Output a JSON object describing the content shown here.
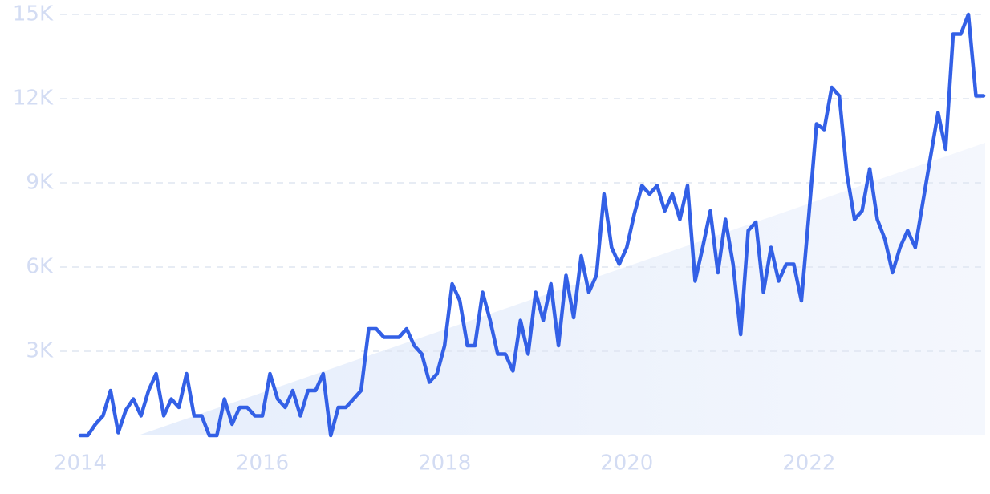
{
  "chart_data": {
    "type": "line",
    "x": [
      2014,
      2014.083,
      2014.167,
      2014.25,
      2014.333,
      2014.417,
      2014.5,
      2014.583,
      2014.667,
      2014.75,
      2014.833,
      2014.917,
      2015,
      2015.083,
      2015.167,
      2015.25,
      2015.333,
      2015.417,
      2015.5,
      2015.583,
      2015.667,
      2015.75,
      2015.833,
      2015.917,
      2016,
      2016.083,
      2016.167,
      2016.25,
      2016.333,
      2016.417,
      2016.5,
      2016.583,
      2016.667,
      2016.75,
      2016.833,
      2016.917,
      2017,
      2017.083,
      2017.167,
      2017.25,
      2017.333,
      2017.417,
      2017.5,
      2017.583,
      2017.667,
      2017.75,
      2017.833,
      2017.917,
      2018,
      2018.083,
      2018.167,
      2018.25,
      2018.333,
      2018.417,
      2018.5,
      2018.583,
      2018.667,
      2018.75,
      2018.833,
      2018.917,
      2019,
      2019.083,
      2019.167,
      2019.25,
      2019.333,
      2019.417,
      2019.5,
      2019.583,
      2019.667,
      2019.75,
      2019.833,
      2019.917,
      2020,
      2020.083,
      2020.167,
      2020.25,
      2020.333,
      2020.417,
      2020.5,
      2020.583,
      2020.667,
      2020.75,
      2020.833,
      2020.917,
      2021,
      2021.083,
      2021.167,
      2021.25,
      2021.333,
      2021.417,
      2021.5,
      2021.583,
      2021.667,
      2021.75,
      2021.833,
      2021.917,
      2022,
      2022.083,
      2022.167,
      2022.25,
      2022.333,
      2022.417,
      2022.5,
      2022.583,
      2022.667,
      2022.75,
      2022.833,
      2022.917,
      2023,
      2023.083,
      2023.167,
      2023.25,
      2023.333,
      2023.417,
      2023.5,
      2023.583,
      2023.667,
      2023.75,
      2023.833,
      2023.917
    ],
    "values": [
      0,
      0,
      400,
      700,
      1600,
      100,
      900,
      1300,
      700,
      1600,
      2200,
      700,
      1300,
      1000,
      2200,
      700,
      700,
      0,
      0,
      1300,
      400,
      1000,
      1000,
      700,
      700,
      2200,
      1300,
      1000,
      1600,
      700,
      1600,
      1600,
      2200,
      0,
      1000,
      1000,
      1300,
      1600,
      3800,
      3800,
      3500,
      3500,
      3500,
      3800,
      3200,
      2900,
      1900,
      2200,
      3200,
      5400,
      4800,
      3200,
      3200,
      5100,
      4100,
      2900,
      2900,
      2300,
      4100,
      2900,
      5100,
      4100,
      5400,
      3200,
      5700,
      4200,
      6400,
      5100,
      5700,
      8600,
      6700,
      6100,
      6700,
      7900,
      8900,
      8600,
      8900,
      8000,
      8600,
      7700,
      8900,
      5500,
      6700,
      8000,
      5800,
      7700,
      6100,
      3600,
      7300,
      7600,
      5100,
      6700,
      5500,
      6100,
      6100,
      4800,
      7900,
      11100,
      10900,
      12400,
      12100,
      9300,
      7700,
      8000,
      9500,
      7700,
      7000,
      5800,
      6700,
      7300,
      6700,
      8300,
      9900,
      11500,
      10200,
      14300,
      14300,
      15000,
      12100,
      12100
    ],
    "color": "#3360e6",
    "xlim": [
      2014,
      2023.917
    ],
    "xticks": [
      2014,
      2016,
      2018,
      2020,
      2022
    ],
    "ylim": [
      0,
      15000
    ],
    "yticks": [
      {
        "value": 3000,
        "label": "3K"
      },
      {
        "value": 6000,
        "label": "6K"
      },
      {
        "value": 9000,
        "label": "9K"
      },
      {
        "value": 12000,
        "label": "12K"
      },
      {
        "value": 15000,
        "label": "15K"
      }
    ],
    "grid": true
  }
}
